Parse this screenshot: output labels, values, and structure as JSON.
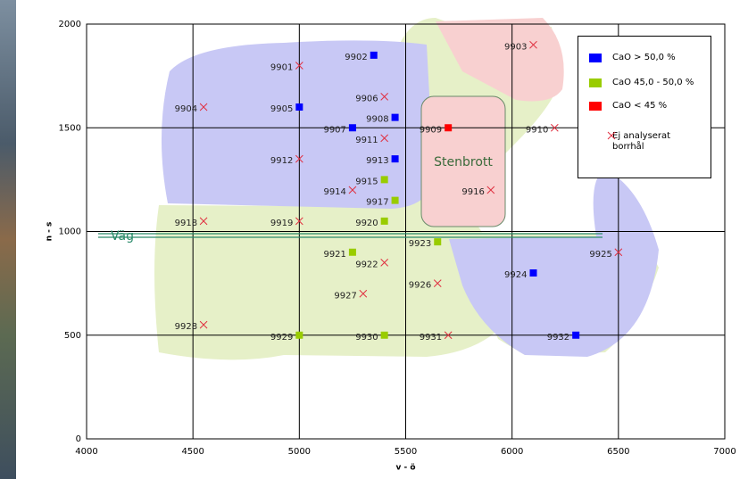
{
  "chart_data": {
    "type": "scatter",
    "xlabel": "v - ö",
    "ylabel": "n - s",
    "xlim": [
      4000,
      7000
    ],
    "xticks": [
      4000,
      4500,
      5000,
      5500,
      6000,
      6500,
      7000
    ],
    "ylim": [
      0,
      2000
    ],
    "yticks": [
      0,
      500,
      1000,
      1500,
      2000
    ],
    "grid": true,
    "annotations": [
      "Stenbrott",
      "Väg"
    ],
    "series": [
      {
        "name": "CaO > 50,0 %",
        "color": "#0000ff",
        "marker": "square",
        "labels": [
          "9902",
          "9905",
          "9907",
          "9908",
          "9913",
          "9924",
          "9932"
        ],
        "x": [
          5350,
          5000,
          5250,
          5450,
          5450,
          6100,
          6300
        ],
        "values": [
          1850,
          1600,
          1500,
          1550,
          1350,
          800,
          500
        ]
      },
      {
        "name": "CaO 45,0 - 50,0 %",
        "color": "#99cc00",
        "marker": "square",
        "labels": [
          "9915",
          "9917",
          "9920",
          "9921",
          "9923",
          "9929",
          "9930"
        ],
        "x": [
          5400,
          5450,
          5400,
          5250,
          5650,
          5000,
          5400
        ],
        "values": [
          1250,
          1150,
          1050,
          900,
          950,
          500,
          500
        ]
      },
      {
        "name": "CaO < 45 %",
        "color": "#ff0000",
        "marker": "square",
        "labels": [
          "9909"
        ],
        "x": [
          5700
        ],
        "values": [
          1500
        ]
      },
      {
        "name": "Ej analyserat borrhål",
        "color": "#e03040",
        "marker": "cross",
        "labels": [
          "9903",
          "9901",
          "9906",
          "9904",
          "9911",
          "9910",
          "9912",
          "9914",
          "9916",
          "9918",
          "9919",
          "9925",
          "9922",
          "9926",
          "9927",
          "9928",
          "9931"
        ],
        "x": [
          6100,
          5000,
          5400,
          4550,
          5400,
          6200,
          5000,
          5250,
          5900,
          4550,
          5000,
          6500,
          5400,
          5650,
          5300,
          4550,
          5700
        ],
        "values": [
          1900,
          1800,
          1650,
          1600,
          1450,
          1500,
          1350,
          1200,
          1200,
          1050,
          1050,
          900,
          850,
          750,
          700,
          550,
          500
        ]
      }
    ]
  }
}
